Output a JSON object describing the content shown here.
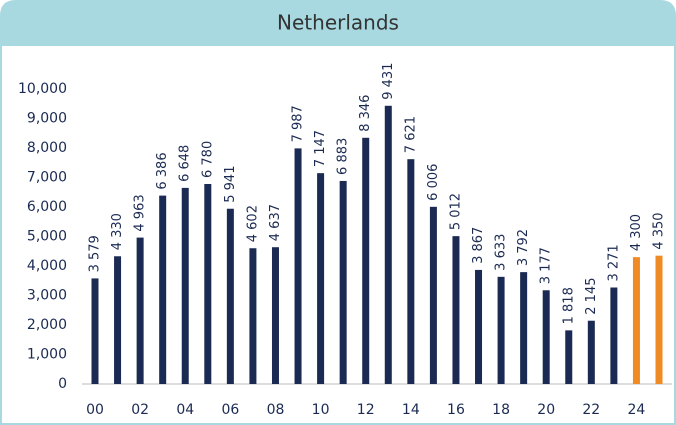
{
  "chart_data": {
    "type": "bar",
    "title": "Netherlands",
    "categories": [
      "00",
      null,
      "02",
      null,
      "04",
      null,
      "06",
      null,
      "08",
      null,
      "10",
      null,
      "12",
      null,
      "14",
      null,
      "16",
      null,
      "18",
      null,
      "20",
      null,
      "22",
      null,
      "24",
      null
    ],
    "values": [
      3579,
      4330,
      4963,
      6386,
      6648,
      6780,
      5941,
      4602,
      4637,
      7987,
      7147,
      6883,
      8346,
      9431,
      7621,
      6006,
      5012,
      3867,
      3633,
      3792,
      3177,
      1818,
      2145,
      3271,
      4300,
      4350
    ],
    "value_labels": [
      "3 579",
      "4 330",
      "4 963",
      "6 386",
      "6 648",
      "6 780",
      "5 941",
      "4 602",
      "4 637",
      "7 987",
      "7 147",
      "6 883",
      "8 346",
      "9 431",
      "7 621",
      "6 006",
      "5 012",
      "3 867",
      "3 633",
      "3 792",
      "3 177",
      "1 818",
      "2 145",
      "3 271",
      "4 300",
      "4 350"
    ],
    "colors": [
      "#1b2a52",
      "#1b2a52",
      "#1b2a52",
      "#1b2a52",
      "#1b2a52",
      "#1b2a52",
      "#1b2a52",
      "#1b2a52",
      "#1b2a52",
      "#1b2a52",
      "#1b2a52",
      "#1b2a52",
      "#1b2a52",
      "#1b2a52",
      "#1b2a52",
      "#1b2a52",
      "#1b2a52",
      "#1b2a52",
      "#1b2a52",
      "#1b2a52",
      "#1b2a52",
      "#1b2a52",
      "#1b2a52",
      "#1b2a52",
      "#f08a24",
      "#f08a24"
    ],
    "ylim": [
      0,
      10000
    ],
    "yticks": [
      0,
      {
        "value": 1000,
        "label": "1,000"
      },
      {
        "value": 2000,
        "label": "2,000"
      },
      {
        "value": 3000,
        "label": "3,000"
      },
      {
        "value": 4000,
        "label": "4,000"
      },
      {
        "value": 5000,
        "label": "5,000"
      },
      {
        "value": 6000,
        "label": "6,000"
      },
      {
        "value": 7000,
        "label": "7,000"
      },
      {
        "value": 8000,
        "label": "8,000"
      },
      {
        "value": 9000,
        "label": "9,000"
      },
      {
        "value": 10000,
        "label": "10,000"
      }
    ],
    "grid": false
  }
}
